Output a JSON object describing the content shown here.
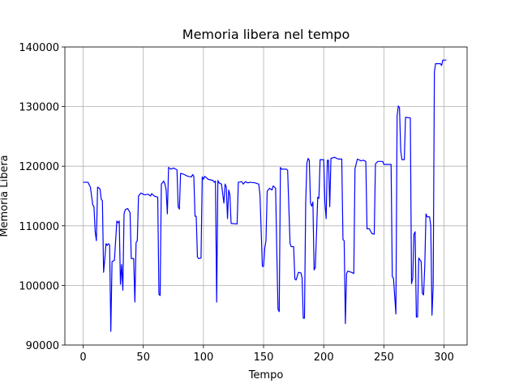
{
  "chart_data": {
    "type": "line",
    "title": "Memoria libera nel tempo",
    "x_label": "Tempo",
    "y_label": "Memoria Libera",
    "color": "#0000ff",
    "grid": true,
    "xlim": [
      -15.2,
      319.2
    ],
    "xticks": [
      0,
      50,
      100,
      150,
      200,
      250,
      300
    ],
    "ylim": [
      90000,
      140000
    ],
    "yticks": [
      90000,
      100000,
      110000,
      120000,
      130000,
      140000
    ],
    "x": [
      0,
      4,
      6,
      8,
      9,
      10,
      11,
      12,
      14,
      15,
      16,
      17,
      18,
      19,
      20,
      21,
      22,
      23,
      24,
      26,
      27,
      28,
      29,
      30,
      31,
      32,
      33,
      34,
      35,
      37,
      39,
      40,
      42,
      43,
      44,
      45,
      46,
      48,
      51,
      54,
      56,
      57,
      59,
      62,
      63,
      64,
      65,
      67,
      68,
      69,
      70,
      71,
      73,
      75,
      78,
      79,
      80,
      81,
      83,
      87,
      90,
      91,
      92,
      93,
      94,
      95,
      96,
      98,
      99,
      100,
      101,
      104,
      108,
      109,
      110,
      111,
      112,
      113,
      115,
      117,
      118,
      119,
      120,
      121,
      122,
      123,
      128,
      129,
      132,
      133,
      135,
      137,
      139,
      143,
      146,
      147,
      149,
      150,
      151,
      152,
      153,
      155,
      157,
      158,
      160,
      161,
      162,
      163,
      164,
      165,
      169,
      170,
      172,
      173,
      175,
      176,
      177,
      179,
      181,
      182,
      183,
      184,
      185,
      186,
      187,
      188,
      189,
      190,
      191,
      192,
      193,
      194,
      195,
      196,
      197,
      200,
      201,
      202,
      203,
      204,
      205,
      206,
      209,
      212,
      215,
      216,
      217,
      218,
      219,
      220,
      223,
      225,
      226,
      228,
      231,
      233,
      235,
      236,
      238,
      240,
      242,
      243,
      245,
      249,
      250,
      256,
      257,
      258,
      260,
      261,
      262,
      263,
      264,
      265,
      267,
      268,
      272,
      273,
      274,
      275,
      276,
      277,
      278,
      279,
      281,
      282,
      283,
      284,
      285,
      286,
      288,
      289,
      290,
      291,
      292,
      293,
      297,
      298,
      299,
      302
    ],
    "values": [
      117300,
      117300,
      116500,
      113500,
      113200,
      109000,
      107500,
      116500,
      116200,
      114500,
      114200,
      102200,
      104500,
      107000,
      106700,
      107000,
      106800,
      92300,
      104000,
      104200,
      107500,
      110800,
      110500,
      110800,
      100200,
      103500,
      99200,
      112000,
      112700,
      112900,
      112200,
      104500,
      104500,
      97200,
      107200,
      107500,
      115000,
      115500,
      115200,
      115300,
      115000,
      115400,
      115000,
      114800,
      98500,
      98300,
      117000,
      117500,
      117000,
      116000,
      112000,
      119800,
      119500,
      119700,
      119400,
      113200,
      112800,
      118800,
      118700,
      118300,
      118200,
      118600,
      118300,
      111600,
      111600,
      104800,
      104500,
      104600,
      118200,
      117800,
      118300,
      117800,
      117600,
      117300,
      117500,
      97200,
      117600,
      117200,
      117000,
      113800,
      117000,
      116500,
      111200,
      116000,
      115200,
      110400,
      110300,
      117300,
      117400,
      117000,
      117400,
      117200,
      117300,
      117200,
      117000,
      115200,
      103200,
      103200,
      106300,
      107500,
      115800,
      116300,
      116000,
      116700,
      116300,
      105500,
      96000,
      95600,
      119800,
      119500,
      119500,
      119300,
      107000,
      106500,
      106500,
      101100,
      100900,
      102200,
      102100,
      101300,
      94500,
      94500,
      113800,
      120500,
      121300,
      121000,
      113800,
      113300,
      114000,
      102600,
      103000,
      108700,
      114800,
      114600,
      121100,
      121100,
      113800,
      111200,
      121000,
      121000,
      113200,
      121300,
      121500,
      121200,
      121200,
      107700,
      107500,
      93600,
      102000,
      102400,
      102200,
      102000,
      119600,
      121200,
      120900,
      121000,
      120800,
      109500,
      109500,
      108700,
      108600,
      120400,
      120800,
      120800,
      120300,
      120300,
      101500,
      101200,
      95200,
      128400,
      130100,
      129800,
      122700,
      121100,
      121100,
      128200,
      128100,
      100300,
      101200,
      108600,
      109000,
      94700,
      94700,
      104600,
      104000,
      98700,
      98400,
      103200,
      112000,
      111500,
      111500,
      110000,
      95000,
      100000,
      135800,
      137200,
      137200,
      136900,
      137800,
      137800
    ]
  }
}
